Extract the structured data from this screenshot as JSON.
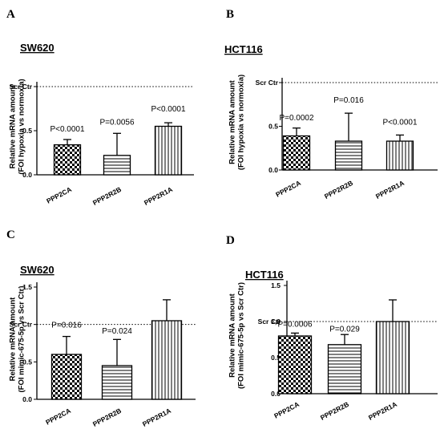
{
  "colors": {
    "ink": "#000000",
    "background": "#ffffff"
  },
  "chart_data": [
    {
      "letter": "A",
      "title": "SW620",
      "type": "bar",
      "ylabel": [
        "Relative mRNA amount",
        "(FOI hypoxia vs normoxia)"
      ],
      "ylim": [
        0,
        1
      ],
      "yticks": [
        "0.0",
        "0.5"
      ],
      "ytick_values": [
        0,
        0.5
      ],
      "reference_line": {
        "label": "Scr Ctr",
        "value": 1
      },
      "categories": [
        "PPP2CA",
        "PPP2R2B",
        "PPP2R1A"
      ],
      "patterns": [
        "checker",
        "horizontal",
        "vertical"
      ],
      "values": [
        0.34,
        0.22,
        0.55
      ],
      "errors": [
        0.06,
        0.25,
        0.04
      ],
      "annotations": [
        "P<0.0001",
        "P=0.0056",
        "P<0.0001"
      ],
      "annotation_values": [
        0.49,
        0.57,
        0.72
      ]
    },
    {
      "letter": "B",
      "title": "HCT116",
      "type": "bar",
      "ylabel": [
        "Relative mRNA amount",
        "(FOI hypoxia vs normoxia)"
      ],
      "ylim": [
        0,
        1
      ],
      "yticks": [
        "0.0",
        "0.5"
      ],
      "ytick_values": [
        0,
        0.5
      ],
      "reference_line": {
        "label": "Scr Ctr",
        "value": 1
      },
      "categories": [
        "PPP2CA",
        "PPP2R2B",
        "PPP2R1A"
      ],
      "patterns": [
        "checker",
        "horizontal",
        "vertical"
      ],
      "values": [
        0.39,
        0.33,
        0.33
      ],
      "errors": [
        0.09,
        0.32,
        0.07
      ],
      "annotations": [
        "P=0.0002",
        "P=0.016",
        "P<0.0001"
      ],
      "annotation_values": [
        0.57,
        0.77,
        0.52
      ]
    },
    {
      "letter": "C",
      "title": "SW620",
      "type": "bar",
      "ylabel": [
        "Relative mRNA amount",
        "(FOI mimic-675-5p vs Scr Ctr)"
      ],
      "ylim": [
        0,
        1.5
      ],
      "yticks": [
        "0.0",
        "0.5",
        "1.5"
      ],
      "ytick_values": [
        0,
        0.5,
        1.5
      ],
      "reference_line": {
        "label": "Scr Ctr",
        "value": 1
      },
      "categories": [
        "PPP2CA",
        "PPP2R2B",
        "PPP2R1A"
      ],
      "patterns": [
        "checker",
        "horizontal",
        "vertical"
      ],
      "values": [
        0.6,
        0.45,
        1.05
      ],
      "errors": [
        0.24,
        0.35,
        0.28
      ],
      "annotations": [
        "P=0.016",
        "P=0.024",
        ""
      ],
      "annotation_values": [
        0.96,
        0.88,
        0
      ]
    },
    {
      "letter": "D",
      "title": "HCT116",
      "type": "bar",
      "ylabel": [
        "Relative mRNA amount",
        "(FOI mimic-675-5p vs Scr Ctr)"
      ],
      "ylim": [
        0,
        1.5
      ],
      "yticks": [
        "0.0",
        "0.5",
        "1,0",
        "1.5"
      ],
      "ytick_values": [
        0,
        0.5,
        1.0,
        1.5
      ],
      "reference_line": {
        "label": "Scr Ctr",
        "value": 1
      },
      "categories": [
        "PPP2CA",
        "PPP2R2B",
        "PPP2R1A"
      ],
      "patterns": [
        "checker",
        "horizontal",
        "vertical"
      ],
      "values": [
        0.8,
        0.68,
        1.0
      ],
      "errors": [
        0.04,
        0.14,
        0.3
      ],
      "annotations": [
        "P=0.0006",
        "P=0.029",
        ""
      ],
      "annotation_values": [
        0.93,
        0.86,
        0
      ]
    }
  ]
}
